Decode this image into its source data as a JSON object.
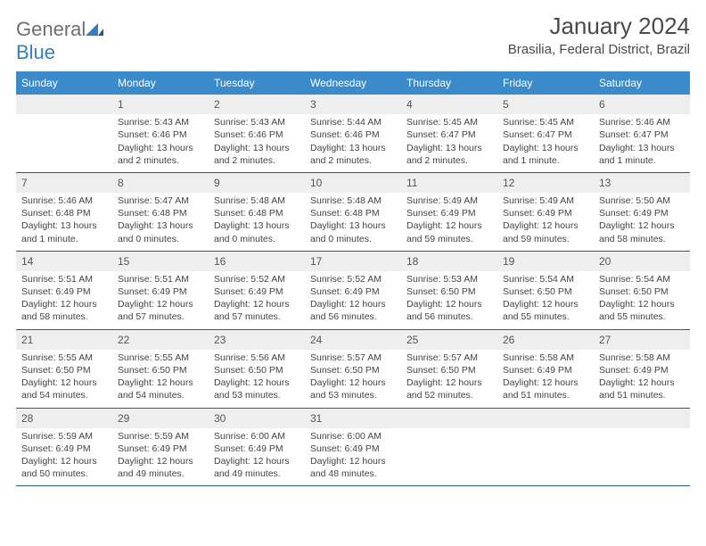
{
  "logo": {
    "text_general": "General",
    "text_blue": "Blue"
  },
  "header": {
    "month_title": "January 2024",
    "location": "Brasilia, Federal District, Brazil"
  },
  "weekdays": [
    "Sunday",
    "Monday",
    "Tuesday",
    "Wednesday",
    "Thursday",
    "Friday",
    "Saturday"
  ],
  "colors": {
    "header_bar": "#3b8bca",
    "header_text": "#ffffff",
    "daynum_bg": "#eeeeee",
    "row_border": "#2a5b88",
    "text": "#444444"
  },
  "weeks": [
    [
      {
        "day": "",
        "sunrise": "",
        "sunset": "",
        "daylight": ""
      },
      {
        "day": "1",
        "sunrise": "Sunrise: 5:43 AM",
        "sunset": "Sunset: 6:46 PM",
        "daylight": "Daylight: 13 hours and 2 minutes."
      },
      {
        "day": "2",
        "sunrise": "Sunrise: 5:43 AM",
        "sunset": "Sunset: 6:46 PM",
        "daylight": "Daylight: 13 hours and 2 minutes."
      },
      {
        "day": "3",
        "sunrise": "Sunrise: 5:44 AM",
        "sunset": "Sunset: 6:46 PM",
        "daylight": "Daylight: 13 hours and 2 minutes."
      },
      {
        "day": "4",
        "sunrise": "Sunrise: 5:45 AM",
        "sunset": "Sunset: 6:47 PM",
        "daylight": "Daylight: 13 hours and 2 minutes."
      },
      {
        "day": "5",
        "sunrise": "Sunrise: 5:45 AM",
        "sunset": "Sunset: 6:47 PM",
        "daylight": "Daylight: 13 hours and 1 minute."
      },
      {
        "day": "6",
        "sunrise": "Sunrise: 5:46 AM",
        "sunset": "Sunset: 6:47 PM",
        "daylight": "Daylight: 13 hours and 1 minute."
      }
    ],
    [
      {
        "day": "7",
        "sunrise": "Sunrise: 5:46 AM",
        "sunset": "Sunset: 6:48 PM",
        "daylight": "Daylight: 13 hours and 1 minute."
      },
      {
        "day": "8",
        "sunrise": "Sunrise: 5:47 AM",
        "sunset": "Sunset: 6:48 PM",
        "daylight": "Daylight: 13 hours and 0 minutes."
      },
      {
        "day": "9",
        "sunrise": "Sunrise: 5:48 AM",
        "sunset": "Sunset: 6:48 PM",
        "daylight": "Daylight: 13 hours and 0 minutes."
      },
      {
        "day": "10",
        "sunrise": "Sunrise: 5:48 AM",
        "sunset": "Sunset: 6:48 PM",
        "daylight": "Daylight: 13 hours and 0 minutes."
      },
      {
        "day": "11",
        "sunrise": "Sunrise: 5:49 AM",
        "sunset": "Sunset: 6:49 PM",
        "daylight": "Daylight: 12 hours and 59 minutes."
      },
      {
        "day": "12",
        "sunrise": "Sunrise: 5:49 AM",
        "sunset": "Sunset: 6:49 PM",
        "daylight": "Daylight: 12 hours and 59 minutes."
      },
      {
        "day": "13",
        "sunrise": "Sunrise: 5:50 AM",
        "sunset": "Sunset: 6:49 PM",
        "daylight": "Daylight: 12 hours and 58 minutes."
      }
    ],
    [
      {
        "day": "14",
        "sunrise": "Sunrise: 5:51 AM",
        "sunset": "Sunset: 6:49 PM",
        "daylight": "Daylight: 12 hours and 58 minutes."
      },
      {
        "day": "15",
        "sunrise": "Sunrise: 5:51 AM",
        "sunset": "Sunset: 6:49 PM",
        "daylight": "Daylight: 12 hours and 57 minutes."
      },
      {
        "day": "16",
        "sunrise": "Sunrise: 5:52 AM",
        "sunset": "Sunset: 6:49 PM",
        "daylight": "Daylight: 12 hours and 57 minutes."
      },
      {
        "day": "17",
        "sunrise": "Sunrise: 5:52 AM",
        "sunset": "Sunset: 6:49 PM",
        "daylight": "Daylight: 12 hours and 56 minutes."
      },
      {
        "day": "18",
        "sunrise": "Sunrise: 5:53 AM",
        "sunset": "Sunset: 6:50 PM",
        "daylight": "Daylight: 12 hours and 56 minutes."
      },
      {
        "day": "19",
        "sunrise": "Sunrise: 5:54 AM",
        "sunset": "Sunset: 6:50 PM",
        "daylight": "Daylight: 12 hours and 55 minutes."
      },
      {
        "day": "20",
        "sunrise": "Sunrise: 5:54 AM",
        "sunset": "Sunset: 6:50 PM",
        "daylight": "Daylight: 12 hours and 55 minutes."
      }
    ],
    [
      {
        "day": "21",
        "sunrise": "Sunrise: 5:55 AM",
        "sunset": "Sunset: 6:50 PM",
        "daylight": "Daylight: 12 hours and 54 minutes."
      },
      {
        "day": "22",
        "sunrise": "Sunrise: 5:55 AM",
        "sunset": "Sunset: 6:50 PM",
        "daylight": "Daylight: 12 hours and 54 minutes."
      },
      {
        "day": "23",
        "sunrise": "Sunrise: 5:56 AM",
        "sunset": "Sunset: 6:50 PM",
        "daylight": "Daylight: 12 hours and 53 minutes."
      },
      {
        "day": "24",
        "sunrise": "Sunrise: 5:57 AM",
        "sunset": "Sunset: 6:50 PM",
        "daylight": "Daylight: 12 hours and 53 minutes."
      },
      {
        "day": "25",
        "sunrise": "Sunrise: 5:57 AM",
        "sunset": "Sunset: 6:50 PM",
        "daylight": "Daylight: 12 hours and 52 minutes."
      },
      {
        "day": "26",
        "sunrise": "Sunrise: 5:58 AM",
        "sunset": "Sunset: 6:49 PM",
        "daylight": "Daylight: 12 hours and 51 minutes."
      },
      {
        "day": "27",
        "sunrise": "Sunrise: 5:58 AM",
        "sunset": "Sunset: 6:49 PM",
        "daylight": "Daylight: 12 hours and 51 minutes."
      }
    ],
    [
      {
        "day": "28",
        "sunrise": "Sunrise: 5:59 AM",
        "sunset": "Sunset: 6:49 PM",
        "daylight": "Daylight: 12 hours and 50 minutes."
      },
      {
        "day": "29",
        "sunrise": "Sunrise: 5:59 AM",
        "sunset": "Sunset: 6:49 PM",
        "daylight": "Daylight: 12 hours and 49 minutes."
      },
      {
        "day": "30",
        "sunrise": "Sunrise: 6:00 AM",
        "sunset": "Sunset: 6:49 PM",
        "daylight": "Daylight: 12 hours and 49 minutes."
      },
      {
        "day": "31",
        "sunrise": "Sunrise: 6:00 AM",
        "sunset": "Sunset: 6:49 PM",
        "daylight": "Daylight: 12 hours and 48 minutes."
      },
      {
        "day": "",
        "sunrise": "",
        "sunset": "",
        "daylight": ""
      },
      {
        "day": "",
        "sunrise": "",
        "sunset": "",
        "daylight": ""
      },
      {
        "day": "",
        "sunrise": "",
        "sunset": "",
        "daylight": ""
      }
    ]
  ]
}
